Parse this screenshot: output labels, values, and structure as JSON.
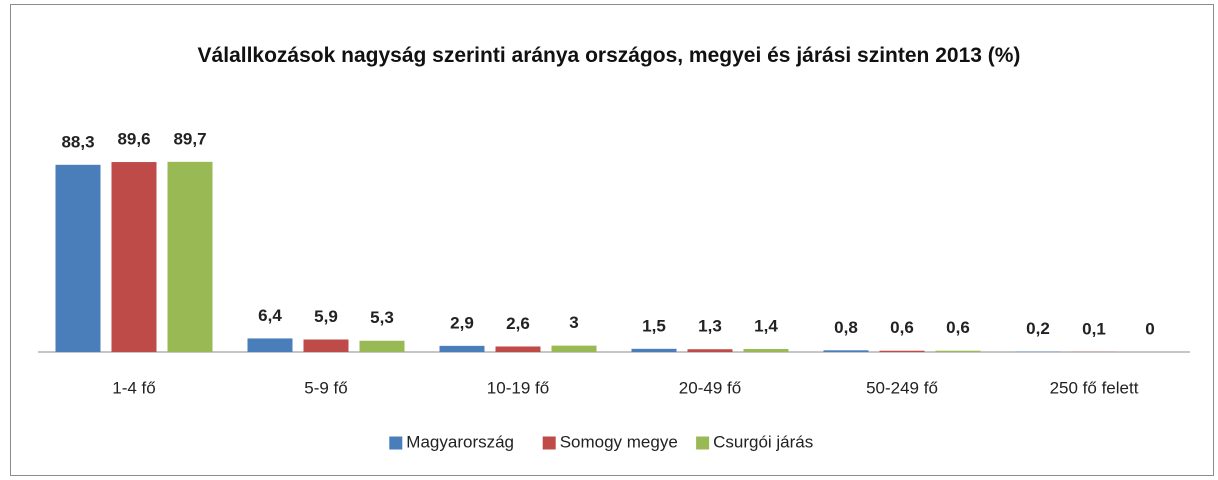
{
  "chart_data": {
    "type": "bar",
    "title": "Válallkozások nagyság szerinti aránya országos, megyei és járási szinten 2013 (%)",
    "categories": [
      "1-4 fő",
      "5-9 fő",
      "10-19 fő",
      "20-49 fő",
      "50-249 fő",
      "250 fő felett"
    ],
    "series": [
      {
        "name": "Magyarország",
        "color": "#4a7ebb",
        "values": [
          88.3,
          6.4,
          2.9,
          1.5,
          0.8,
          0.2
        ],
        "value_labels": [
          "88,3",
          "6,4",
          "2,9",
          "1,5",
          "0,8",
          "0,2"
        ]
      },
      {
        "name": "Somogy megye",
        "color": "#be4b48",
        "values": [
          89.6,
          5.9,
          2.6,
          1.3,
          0.6,
          0.1
        ],
        "value_labels": [
          "89,6",
          "5,9",
          "2,6",
          "1,3",
          "0,6",
          "0,1"
        ]
      },
      {
        "name": "Csurgói járás",
        "color": "#98b954",
        "values": [
          89.7,
          5.3,
          3,
          1.4,
          0.6,
          0
        ],
        "value_labels": [
          "89,7",
          "5,3",
          "3",
          "1,4",
          "0,6",
          "0"
        ]
      }
    ],
    "ylim": [
      0,
      100
    ],
    "legend": "bottom"
  }
}
